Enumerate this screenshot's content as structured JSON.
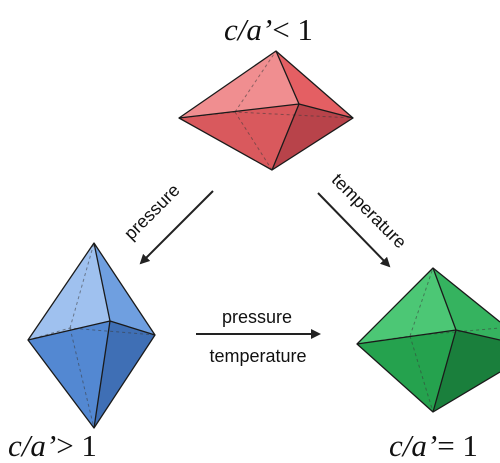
{
  "conditions": {
    "top": {
      "ratio": "c/a’",
      "relation": "< 1"
    },
    "left": {
      "ratio": "c/a’",
      "relation": "> 1"
    },
    "right": {
      "ratio": "c/a’",
      "relation": "= 1"
    }
  },
  "arrows": {
    "top_to_left": "pressure",
    "top_to_right": "temperature",
    "left_to_right_upper": "pressure",
    "left_to_right_lower": "temperature"
  },
  "colors": {
    "red_octahedron": "#e8686b",
    "blue_octahedron": "#5b8fd6",
    "green_octahedron": "#2fb35a"
  }
}
